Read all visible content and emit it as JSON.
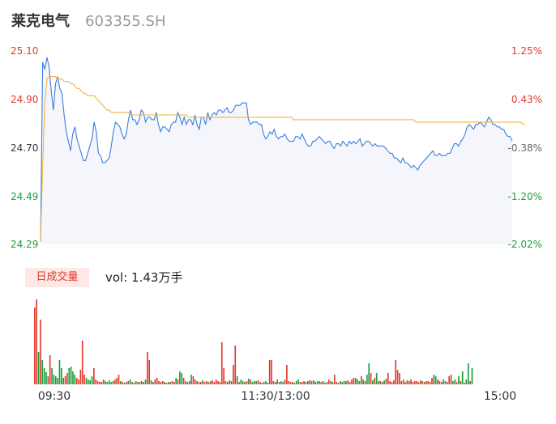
{
  "header": {
    "name": "莱克电气",
    "code": "603355.SH"
  },
  "volume": {
    "tab_label": "日成交量",
    "vol_label": "vol: 1.43万手"
  },
  "colors": {
    "up": "#e03a2c",
    "down": "#1a9e3a",
    "price_line": "#3b7ddd",
    "avg_line": "#f5b342",
    "area": "#f4f6fb"
  },
  "chart_data": {
    "type": "line",
    "x_ticks": [
      "09:30",
      "11:30/13:00",
      "15:00"
    ],
    "y_left_ticks": [
      "25.10",
      "24.90",
      "24.70",
      "24.49",
      "24.29"
    ],
    "y_right_ticks": [
      "1.25%",
      "0.43%",
      "-0.38%",
      "-1.20%",
      "-2.02%"
    ],
    "ylim": [
      24.29,
      25.1
    ],
    "prev_close": 24.79,
    "series": [
      {
        "values": [
          24.3,
          25.05,
          25.02,
          25.07,
          25.03,
          24.93,
          24.85,
          24.96,
          24.99,
          24.94,
          24.92,
          24.83,
          24.76,
          24.72,
          24.68,
          24.75,
          24.78,
          24.73,
          24.7,
          24.67,
          24.64,
          24.64,
          24.67,
          24.7,
          24.73,
          24.8,
          24.76,
          24.67,
          24.66,
          24.63,
          24.63,
          24.64,
          24.65,
          24.7,
          24.76,
          24.8,
          24.79,
          24.78,
          24.75,
          24.73,
          24.75,
          24.81,
          24.85,
          24.81,
          24.81,
          24.79,
          24.81,
          24.85,
          24.84,
          24.8,
          24.82,
          24.82,
          24.81,
          24.81,
          24.84,
          24.79,
          24.76,
          24.78,
          24.78,
          24.77,
          24.76,
          24.79,
          24.8,
          24.8,
          24.84,
          24.82,
          24.79,
          24.82,
          24.79,
          24.81,
          24.81,
          24.79,
          24.83,
          24.79,
          24.77,
          24.82,
          24.82,
          24.79,
          24.84,
          24.81,
          24.83,
          24.84,
          24.83,
          24.85,
          24.85,
          24.84,
          24.85,
          24.86,
          24.84,
          24.84,
          24.85,
          24.87,
          24.87,
          24.87,
          24.88,
          24.88,
          24.88,
          24.81,
          24.79,
          24.8,
          24.8,
          24.8,
          24.79,
          24.79,
          24.75,
          24.73,
          24.74,
          24.76,
          24.75,
          24.77,
          24.74,
          24.73,
          24.74,
          24.74,
          24.75,
          24.73,
          24.72,
          24.72,
          24.72,
          24.74,
          24.74,
          24.73,
          24.75,
          24.73,
          24.71,
          24.7,
          24.7,
          24.72,
          24.72,
          24.73,
          24.74,
          24.73,
          24.72,
          24.71,
          24.72,
          24.72,
          24.7,
          24.69,
          24.71,
          24.71,
          24.7,
          24.72,
          24.71,
          24.7,
          24.72,
          24.71,
          24.72,
          24.71,
          24.72,
          24.73,
          24.7,
          24.71,
          24.72,
          24.72,
          24.71,
          24.7,
          24.71,
          24.7,
          24.7,
          24.7,
          24.7,
          24.69,
          24.68,
          24.67,
          24.67,
          24.65,
          24.65,
          24.64,
          24.63,
          24.65,
          24.63,
          24.63,
          24.62,
          24.61,
          24.62,
          24.61,
          24.6,
          24.62,
          24.63,
          24.64,
          24.65,
          24.66,
          24.67,
          24.68,
          24.66,
          24.66,
          24.67,
          24.66,
          24.66,
          24.66,
          24.67,
          24.67,
          24.69,
          24.71,
          24.71,
          24.7,
          24.72,
          24.73,
          24.75,
          24.78,
          24.79,
          24.78,
          24.77,
          24.79,
          24.79,
          24.8,
          24.79,
          24.78,
          24.8,
          24.82,
          24.81,
          24.79,
          24.79,
          24.78,
          24.78,
          24.77,
          24.77,
          24.75,
          24.74,
          24.74,
          24.72
        ]
      },
      {
        "values": [
          24.3,
          24.62,
          24.88,
          24.98,
          24.99,
          24.99,
          24.99,
          24.99,
          24.98,
          24.98,
          24.98,
          24.97,
          24.97,
          24.97,
          24.96,
          24.96,
          24.95,
          24.94,
          24.94,
          24.93,
          24.92,
          24.92,
          24.91,
          24.91,
          24.91,
          24.91,
          24.9,
          24.89,
          24.88,
          24.87,
          24.86,
          24.85,
          24.85,
          24.84,
          24.84,
          24.84,
          24.84,
          24.84,
          24.84,
          24.84,
          24.84,
          24.84,
          24.83,
          24.83,
          24.83,
          24.83,
          24.83,
          24.83,
          24.83,
          24.83,
          24.83,
          24.83,
          24.83,
          24.83,
          24.83,
          24.83,
          24.83,
          24.83,
          24.83,
          24.83,
          24.83,
          24.83,
          24.83,
          24.83,
          24.83,
          24.83,
          24.83,
          24.83,
          24.83,
          24.82,
          24.82,
          24.82,
          24.82,
          24.82,
          24.82,
          24.82,
          24.82,
          24.82,
          24.82,
          24.82,
          24.82,
          24.82,
          24.82,
          24.82,
          24.82,
          24.82,
          24.82,
          24.82,
          24.82,
          24.82,
          24.82,
          24.82,
          24.82,
          24.82,
          24.82,
          24.82,
          24.82,
          24.82,
          24.82,
          24.82,
          24.82,
          24.82,
          24.82,
          24.82,
          24.82,
          24.82,
          24.82,
          24.82,
          24.82,
          24.82,
          24.82,
          24.82,
          24.82,
          24.82,
          24.82,
          24.82,
          24.82,
          24.82,
          24.81,
          24.81,
          24.81,
          24.81,
          24.81,
          24.81,
          24.81,
          24.81,
          24.81,
          24.81,
          24.81,
          24.81,
          24.81,
          24.81,
          24.81,
          24.81,
          24.81,
          24.81,
          24.81,
          24.81,
          24.81,
          24.81,
          24.81,
          24.81,
          24.81,
          24.81,
          24.81,
          24.81,
          24.81,
          24.81,
          24.81,
          24.81,
          24.81,
          24.81,
          24.81,
          24.81,
          24.81,
          24.81,
          24.81,
          24.81,
          24.81,
          24.81,
          24.81,
          24.81,
          24.81,
          24.81,
          24.81,
          24.81,
          24.81,
          24.81,
          24.81,
          24.81,
          24.81,
          24.81,
          24.81,
          24.81,
          24.81,
          24.8,
          24.8,
          24.8,
          24.8,
          24.8,
          24.8,
          24.8,
          24.8,
          24.8,
          24.8,
          24.8,
          24.8,
          24.8,
          24.8,
          24.8,
          24.8,
          24.8,
          24.8,
          24.8,
          24.8,
          24.8,
          24.8,
          24.8,
          24.8,
          24.8,
          24.8,
          24.8,
          24.8,
          24.8,
          24.8,
          24.8,
          24.8,
          24.8,
          24.8,
          24.8,
          24.8,
          24.8,
          24.8,
          24.8,
          24.8,
          24.8,
          24.8,
          24.8,
          24.8,
          24.8,
          24.8,
          24.8,
          24.8,
          24.8,
          24.8,
          24.79,
          24.79
        ]
      }
    ],
    "volume": [
      95,
      105,
      40,
      80,
      30,
      20,
      15,
      10,
      36,
      20,
      12,
      10,
      8,
      30,
      20,
      8,
      10,
      14,
      20,
      22,
      16,
      12,
      8,
      6,
      18,
      54,
      12,
      8,
      6,
      5,
      10,
      20,
      6,
      4,
      3,
      3,
      6,
      4,
      3,
      5,
      3,
      4,
      6,
      8,
      12,
      4,
      3,
      2,
      3,
      4,
      6,
      3,
      2,
      4,
      3,
      3,
      4,
      3,
      6,
      40,
      30,
      5,
      3,
      6,
      8,
      4,
      3,
      4,
      3,
      2,
      3,
      3,
      4,
      3,
      8,
      6,
      16,
      14,
      8,
      4,
      3,
      4,
      12,
      10,
      6,
      4,
      3,
      3,
      5,
      3,
      4,
      3,
      4,
      5,
      3,
      6,
      4,
      3,
      52,
      20,
      4,
      3,
      5,
      4,
      24,
      48,
      10,
      3,
      6,
      4,
      3,
      4,
      7,
      6,
      3,
      4,
      4,
      5,
      3,
      2,
      3,
      4,
      2,
      30,
      30,
      4,
      3,
      6,
      3,
      4,
      3,
      6,
      24,
      4,
      3,
      3,
      2,
      4,
      6,
      3,
      3,
      4,
      3,
      4,
      5,
      4,
      5,
      3,
      4,
      4,
      3,
      4,
      2,
      3,
      6,
      4,
      3,
      12,
      3,
      2,
      4,
      3,
      4,
      4,
      5,
      3,
      6,
      8,
      8,
      6,
      4,
      10,
      6,
      4,
      12,
      26,
      14,
      5,
      8,
      14,
      4,
      4,
      3,
      5,
      7,
      14,
      4,
      3,
      5,
      30,
      18,
      14,
      4,
      6,
      3,
      5,
      4,
      6,
      3,
      4,
      4,
      3,
      5,
      4,
      3,
      4,
      4,
      3,
      8,
      12,
      10,
      6,
      4,
      3,
      6,
      4,
      3,
      10,
      12,
      4,
      6,
      3,
      10,
      4,
      16,
      2,
      6,
      26,
      4,
      20
    ]
  }
}
